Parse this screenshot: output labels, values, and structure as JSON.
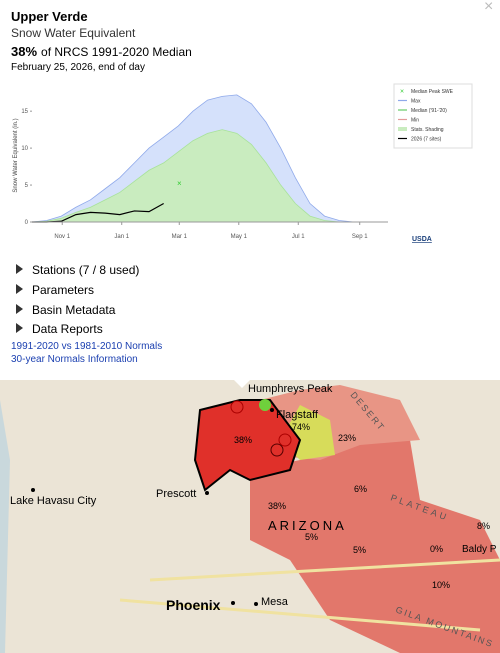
{
  "header": {
    "title": "Upper Verde",
    "subtitle": "Snow Water Equivalent",
    "percent": "38%",
    "percent_text": "of NRCS 1991-2020 Median",
    "date": "February 25, 2026, end of day"
  },
  "chart_data": {
    "type": "line",
    "y_label": "Snow Water Equivalent (in.)",
    "logo": "USDA",
    "x": [
      0,
      15,
      30,
      45,
      60,
      75,
      90,
      105,
      120,
      135,
      150,
      165,
      180,
      195,
      210,
      225,
      240,
      255,
      270,
      285,
      300,
      315,
      330,
      345,
      360
    ],
    "xlim": [
      0,
      365
    ],
    "xticks": [
      {
        "value": 31,
        "label": "Nov 1"
      },
      {
        "value": 92,
        "label": "Jan 1"
      },
      {
        "value": 151,
        "label": "Mar 1"
      },
      {
        "value": 212,
        "label": "May 1"
      },
      {
        "value": 273,
        "label": "Jul 1"
      },
      {
        "value": 336,
        "label": "Sep 1"
      }
    ],
    "ylim": [
      0,
      18
    ],
    "yticks": [
      0,
      5,
      10,
      15
    ],
    "peak": {
      "name": "Median Peak SWE",
      "x": 151,
      "value": 5.2,
      "color": "#33cc33"
    },
    "series": [
      {
        "name": "Max",
        "color": "#8fa9ea",
        "fill": "#d5e1fb",
        "values": [
          0,
          0.2,
          0.8,
          2,
          3,
          4.5,
          6,
          8,
          10,
          11.5,
          13,
          15,
          16.5,
          17,
          17.2,
          16,
          13.5,
          10,
          6,
          2.5,
          0.8,
          0.2,
          0,
          0,
          0
        ]
      },
      {
        "name": "Median ('91-'20)",
        "color": "#66cc66",
        "values": [
          0,
          0,
          0.2,
          0.5,
          0.8,
          1.3,
          1.8,
          2.5,
          3,
          3.5,
          4,
          4.5,
          4.8,
          5,
          4.8,
          4,
          3,
          1.8,
          0.8,
          0.2,
          0,
          0,
          0,
          0,
          0
        ]
      },
      {
        "name": "Min",
        "color": "#e39a9a",
        "values": [
          0,
          0,
          0,
          0,
          0,
          0,
          0,
          0,
          0.1,
          0.2,
          0.3,
          0.4,
          0.5,
          0.5,
          0.4,
          0.3,
          0.2,
          0,
          0,
          0,
          0,
          0,
          0,
          0,
          0
        ]
      },
      {
        "name": "Stats. Shading",
        "color": "#a8e29a",
        "fill": "#c9ecbf",
        "values": [
          0,
          0.1,
          0.5,
          1.3,
          2,
          3,
          4,
          5.5,
          7,
          8,
          9.5,
          11,
          12,
          12.5,
          12,
          10.5,
          8,
          5,
          2.5,
          0.8,
          0.2,
          0,
          0,
          0,
          0
        ]
      },
      {
        "name": "2026 (7 sites)",
        "color": "#000000",
        "values": [
          0,
          0,
          0.1,
          1,
          1.3,
          1.2,
          1,
          1.5,
          1.4,
          2.5,
          null,
          null,
          null,
          null,
          null,
          null,
          null,
          null,
          null,
          null,
          null,
          null,
          null,
          null,
          null
        ]
      }
    ]
  },
  "menu": [
    "Stations (7 / 8 used)",
    "Parameters",
    "Basin Metadata",
    "Data Reports"
  ],
  "links": [
    "1991-2020 vs 1981-2010 Normals",
    "30-year Normals Information"
  ],
  "map": {
    "labels": [
      "Humphreys Peak",
      "Flagstaff",
      "Lake Havasu City",
      "Prescott",
      "Phoenix",
      "Mesa",
      "ARIZONA",
      "Baldy P",
      "DESERT",
      "PLATEAU",
      "GILA MOUNTAINS"
    ],
    "percents": [
      "74%",
      "38%",
      "23%",
      "6%",
      "38%",
      "5%",
      "5%",
      "0%",
      "8%",
      "10%"
    ]
  }
}
